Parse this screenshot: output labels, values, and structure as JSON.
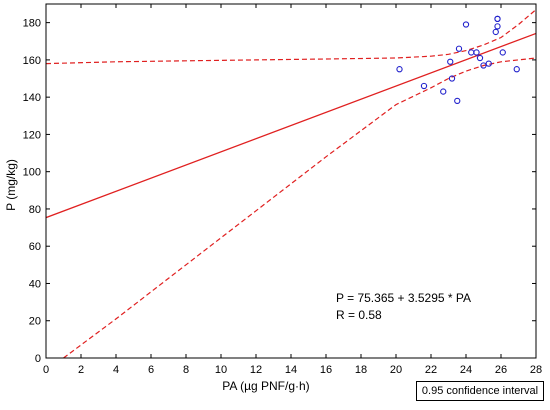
{
  "chart_data": {
    "type": "scatter",
    "title": "",
    "xlabel": "PA (µg PNF/g·h)",
    "ylabel": "P (mg/kg)",
    "xlim": [
      0,
      28
    ],
    "ylim": [
      0,
      190
    ],
    "xticks": [
      "0",
      "2",
      "4",
      "6",
      "8",
      "10",
      "12",
      "14",
      "16",
      "18",
      "20",
      "22",
      "24",
      "26",
      "28"
    ],
    "yticks": [
      "0",
      "20",
      "40",
      "60",
      "80",
      "100",
      "120",
      "140",
      "160",
      "180"
    ],
    "grid": false,
    "points": {
      "x": [
        20.2,
        21.6,
        22.7,
        23.1,
        23.2,
        23.5,
        23.6,
        24.0,
        24.3,
        24.6,
        24.8,
        25.0,
        25.3,
        25.7,
        25.8,
        25.8,
        25.8,
        26.1,
        26.9
      ],
      "y": [
        155,
        146,
        143,
        159,
        150,
        138,
        166,
        179,
        164,
        164,
        161,
        157,
        158,
        175,
        178,
        182,
        182,
        164,
        155
      ]
    },
    "regression": {
      "intercept": 75.365,
      "slope": 3.5295,
      "equation_text": "P = 75.365 + 3.5295 * PA",
      "r_text": "R = 0.58"
    },
    "confidence_band": {
      "upper": {
        "x": [
          0,
          4,
          8,
          12,
          16,
          20,
          22,
          23,
          24,
          25,
          26,
          27,
          28
        ],
        "y": [
          158,
          159,
          159.5,
          160,
          160.5,
          161,
          162,
          163,
          165,
          168,
          172,
          179,
          187
        ]
      },
      "lower": {
        "x": [
          1,
          4,
          8,
          12,
          16,
          20,
          22,
          23,
          24,
          25,
          26,
          27,
          28
        ],
        "y": [
          0,
          21,
          50,
          79,
          108,
          136,
          145,
          150,
          154,
          157,
          159,
          160,
          161
        ]
      },
      "legend": "0.95 confidence interval"
    },
    "colors": {
      "points": "#2222cc",
      "line": "#e02020",
      "band": "#e02020"
    }
  }
}
